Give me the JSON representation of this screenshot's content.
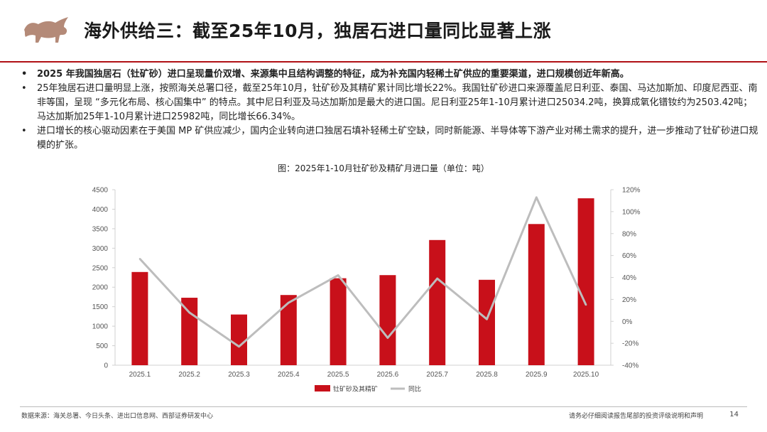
{
  "slide": {
    "title": "海外供给三：截至25年10月，独居石进口量同比显著上涨",
    "bullets": [
      "2025 年我国独居石（钍矿砂）进口呈现量价双增、来源集中且结构调整的特征，成为补充国内轻稀土矿供应的重要渠道，进口规模创近年新高。",
      "25年独居石进口量明显上涨，按照海关总署口径，截至25年10月，钍矿砂及其精矿累计同比增长22%。我国钍矿砂进口来源覆盖尼日利亚、泰国、马达加斯加、印度尼西亚、南非等国，呈现 “多元化布局、核心国集中” 的特点。其中尼日利亚及马达加斯加是最大的进口国。尼日利亚25年1-10月累计进口25034.2吨，换算成氧化镨钕约为2503.42吨；马达加斯加25年1-10月累计进口25982吨，同比增长66.34%。",
      "进口增长的核心驱动因素在于美国 MP 矿供应减少，国内企业转向进口独居石填补轻稀土矿空缺，同时新能源、半导体等下游产业对稀土需求的提升，进一步推动了钍矿砂进口规模的扩张。"
    ],
    "bullet_mark": "•"
  },
  "chart_title": "图：2025年1-10月钍矿砂及精矿月进口量（单位：吨）",
  "chart_data": {
    "type": "bar",
    "categories": [
      "2025.1",
      "2025.2",
      "2025.3",
      "2025.4",
      "2025.5",
      "2025.6",
      "2025.7",
      "2025.8",
      "2025.9",
      "2025.10"
    ],
    "series": [
      {
        "name": "钍矿砂及其精矿",
        "type": "bar",
        "axis": "left",
        "color": "#c8101a",
        "values": [
          2390,
          1730,
          1300,
          1800,
          2230,
          2310,
          3210,
          2190,
          3620,
          4280
        ]
      },
      {
        "name": "同比",
        "type": "line",
        "axis": "right",
        "color": "#bdbdbd",
        "values": [
          57,
          8,
          -23,
          17,
          42,
          -15,
          39,
          2,
          113,
          15
        ]
      }
    ],
    "y_left": {
      "min": 0,
      "max": 4500,
      "ticks": [
        "0",
        "500",
        "1000",
        "1500",
        "2000",
        "2500",
        "3000",
        "3500",
        "4000",
        "4500"
      ]
    },
    "y_right": {
      "min": -40,
      "max": 120,
      "ticks": [
        "-40%",
        "-20%",
        "0%",
        "20%",
        "40%",
        "60%",
        "80%",
        "100%",
        "120%"
      ]
    },
    "legend_position": "bottom",
    "grid": false
  },
  "footer": {
    "source": "数据来源：海关总署、今日头条、进出口信息网、西部证券研发中心",
    "disclaimer": "请务必仔细阅读报告尾部的投资评级说明和声明",
    "page": "14"
  }
}
